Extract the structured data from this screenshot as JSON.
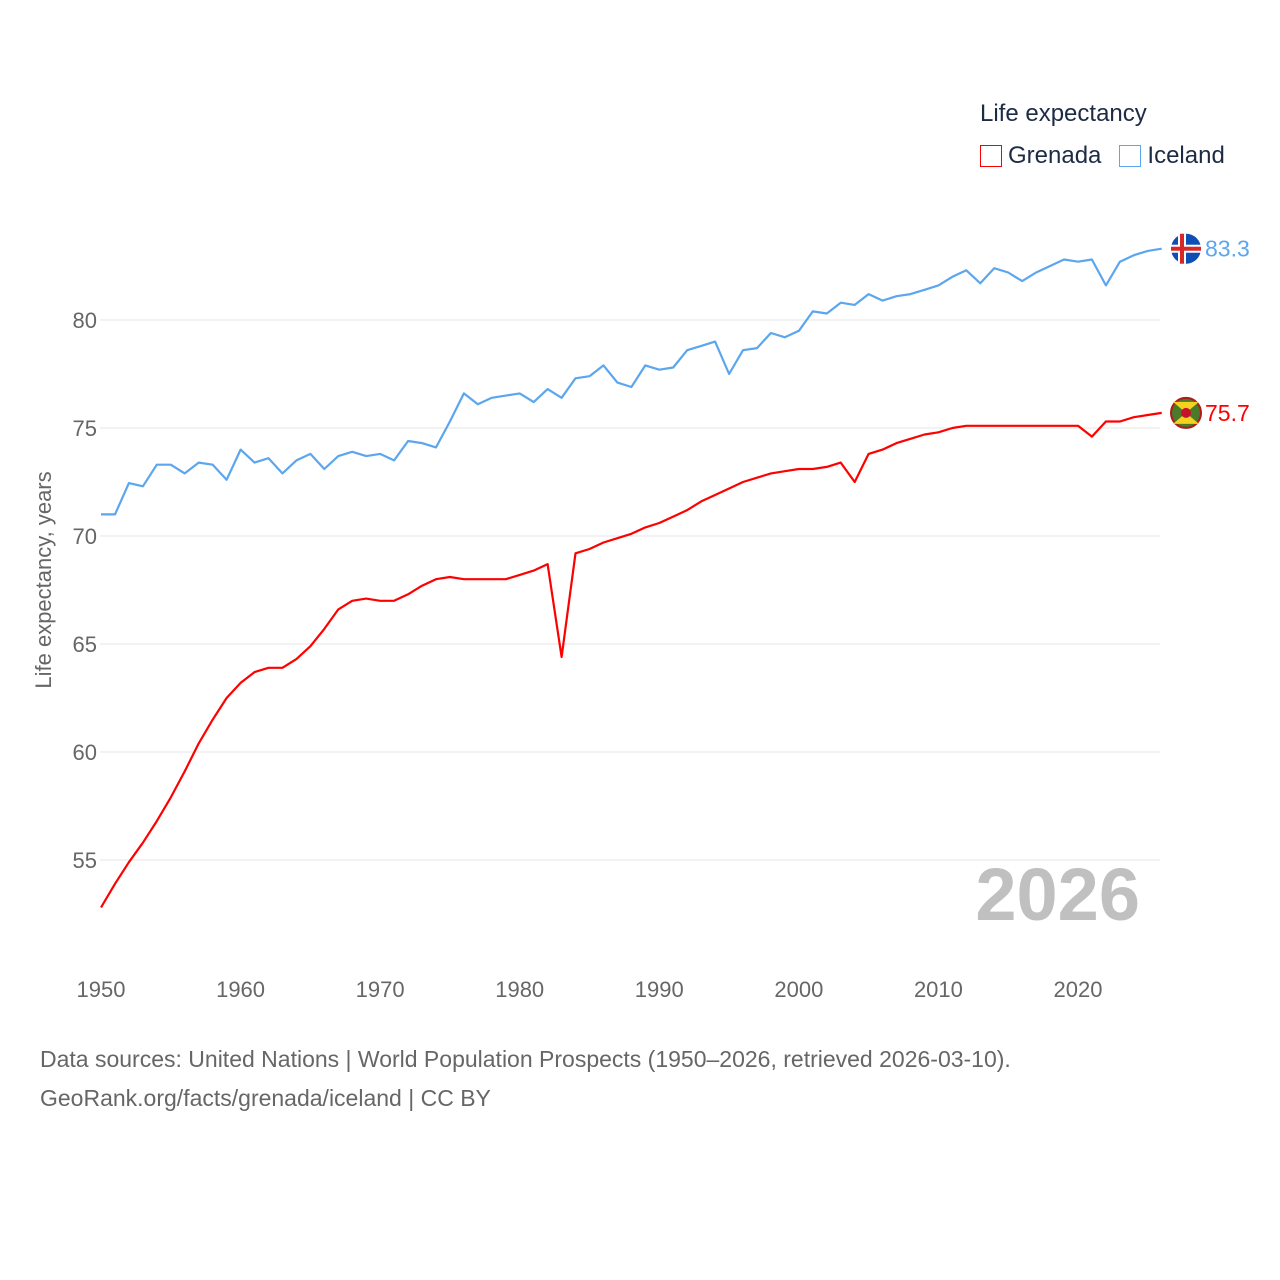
{
  "chart_data": {
    "type": "line",
    "title": "",
    "xlabel": "",
    "ylabel": "Life expectancy, years",
    "xlim": [
      1950,
      2026
    ],
    "ylim": [
      51.5,
      84.5
    ],
    "xticks": [
      "1950",
      "1960",
      "1970",
      "1980",
      "1990",
      "2000",
      "2010",
      "2020"
    ],
    "yticks": [
      "55",
      "60",
      "65",
      "70",
      "75",
      "80"
    ],
    "grid": true,
    "legend": {
      "title": "Life expectancy",
      "placement": "top-right"
    },
    "year_watermark": "2026",
    "x": [
      1950,
      1951,
      1952,
      1953,
      1954,
      1955,
      1956,
      1957,
      1958,
      1959,
      1960,
      1961,
      1962,
      1963,
      1964,
      1965,
      1966,
      1967,
      1968,
      1969,
      1970,
      1971,
      1972,
      1973,
      1974,
      1975,
      1976,
      1977,
      1978,
      1979,
      1980,
      1981,
      1982,
      1983,
      1984,
      1985,
      1986,
      1987,
      1988,
      1989,
      1990,
      1991,
      1992,
      1993,
      1994,
      1995,
      1996,
      1997,
      1998,
      1999,
      2000,
      2001,
      2002,
      2003,
      2004,
      2005,
      2006,
      2007,
      2008,
      2009,
      2010,
      2011,
      2012,
      2013,
      2014,
      2015,
      2016,
      2017,
      2018,
      2019,
      2020,
      2021,
      2022,
      2023,
      2024,
      2025,
      2026
    ],
    "series": [
      {
        "name": "Grenada",
        "color": "#ff0000",
        "end_label": "75.7",
        "values": [
          52.8,
          53.9,
          54.9,
          55.8,
          56.8,
          57.9,
          59.1,
          60.4,
          61.5,
          62.5,
          63.2,
          63.7,
          63.9,
          63.9,
          64.3,
          64.9,
          65.7,
          66.6,
          67.0,
          67.1,
          67.0,
          67.0,
          67.3,
          67.7,
          68.0,
          68.1,
          68.0,
          68.0,
          68.0,
          68.0,
          68.2,
          68.4,
          68.7,
          64.4,
          69.2,
          69.4,
          69.7,
          69.9,
          70.1,
          70.4,
          70.6,
          70.9,
          71.2,
          71.6,
          71.9,
          72.2,
          72.5,
          72.7,
          72.9,
          73.0,
          73.1,
          73.1,
          73.2,
          73.4,
          72.5,
          73.8,
          74.0,
          74.3,
          74.5,
          74.7,
          74.8,
          75.0,
          75.1,
          75.1,
          75.1,
          75.1,
          75.1,
          75.1,
          75.1,
          75.1,
          75.1,
          74.6,
          75.3,
          75.3,
          75.5,
          75.6,
          75.7
        ]
      },
      {
        "name": "Iceland",
        "color": "#5ba6ee",
        "end_label": "83.3",
        "values": [
          71.0,
          71.0,
          72.45,
          72.3,
          73.3,
          73.3,
          72.9,
          73.4,
          73.3,
          72.6,
          74.0,
          73.4,
          73.6,
          72.9,
          73.5,
          73.8,
          73.1,
          73.7,
          73.9,
          73.7,
          73.8,
          73.5,
          74.4,
          74.3,
          74.1,
          75.3,
          76.6,
          76.1,
          76.4,
          76.5,
          76.6,
          76.2,
          76.8,
          76.4,
          77.3,
          77.4,
          77.9,
          77.1,
          76.9,
          77.9,
          77.7,
          77.8,
          78.6,
          78.8,
          79.0,
          77.5,
          78.6,
          78.7,
          79.4,
          79.2,
          79.5,
          80.4,
          80.3,
          80.8,
          80.7,
          81.2,
          80.9,
          81.1,
          81.2,
          81.4,
          81.6,
          82.0,
          82.3,
          81.7,
          82.4,
          82.2,
          81.8,
          82.2,
          82.5,
          82.8,
          82.7,
          82.8,
          81.6,
          82.7,
          83.0,
          83.2,
          83.3
        ]
      }
    ]
  },
  "footer": {
    "line1": "Data sources: United Nations | World Population Prospects (1950–2026, retrieved 2026-03-10).",
    "line2": "GeoRank.org/facts/grenada/iceland | CC BY"
  }
}
